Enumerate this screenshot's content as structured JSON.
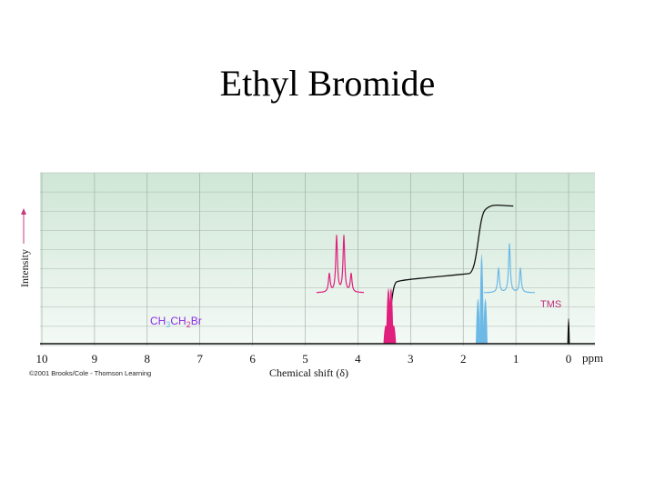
{
  "slide": {
    "title": "Ethyl Bromide"
  },
  "chart_data": {
    "type": "line",
    "xlabel": "Chemical shift (δ)",
    "ylabel": "Intensity",
    "x_unit": "ppm",
    "xlim": [
      10,
      0
    ],
    "x_reversed": true,
    "grid": true,
    "ticks": [
      10,
      9,
      8,
      7,
      6,
      5,
      4,
      3,
      2,
      1,
      0
    ],
    "credit": "©2001 Brooks/Cole - Thomson Learning",
    "compound": {
      "parts": [
        {
          "text": "CH",
          "color": "#8a2be2"
        },
        {
          "text": "3",
          "color": "#6db9e6",
          "sub": true
        },
        {
          "text": "CH",
          "color": "#8a2be2"
        },
        {
          "text": "2",
          "color": "#cc2a8a",
          "sub": true
        },
        {
          "text": "Br",
          "color": "#8a2be2"
        }
      ]
    },
    "tms_label": "TMS",
    "colors": {
      "ch2_signal": "#e0207c",
      "ch3_signal": "#6db9e6",
      "baseline": "#111111",
      "integral": "#111111",
      "tms_label": "#c42a7c",
      "plot_background_top": "#cfe6d6",
      "plot_background_bottom": "#f4faf6"
    },
    "series": [
      {
        "name": "CH2",
        "multiplicity": "quartet",
        "shift_ppm": 3.4,
        "lines_ppm": [
          3.47,
          3.42,
          3.37,
          3.32
        ],
        "relative_heights": [
          0.33,
          1.0,
          1.0,
          0.33
        ],
        "integral_relative": 2
      },
      {
        "name": "CH3",
        "multiplicity": "triplet",
        "shift_ppm": 1.65,
        "lines_ppm": [
          1.72,
          1.65,
          1.58
        ],
        "relative_heights": [
          0.5,
          1.0,
          0.5
        ],
        "integral_relative": 3
      },
      {
        "name": "TMS",
        "multiplicity": "singlet",
        "shift_ppm": 0.0,
        "lines_ppm": [
          0.0
        ],
        "relative_heights": [
          1.0
        ]
      }
    ]
  }
}
